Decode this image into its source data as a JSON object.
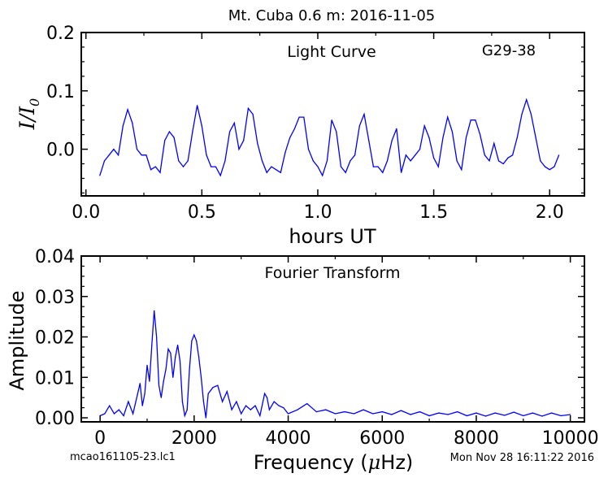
{
  "figure": {
    "title": "Mt. Cuba 0.6 m:  2016-11-05",
    "footer_left": "mcao161105-23.lc1",
    "footer_right": "Mon Nov 28 16:11:22 2016"
  },
  "colors": {
    "line": "#0000ff",
    "axes": "#000000",
    "background": "#ffffff"
  },
  "chart_data": [
    {
      "type": "line",
      "title": "Light Curve",
      "annotation": "G29-38",
      "xlabel": "hours UT",
      "ylabel_main": "I/I",
      "ylabel_sub": "0",
      "xlim": [
        -0.02,
        2.15
      ],
      "ylim": [
        -0.08,
        0.2
      ],
      "xticks": [
        0.0,
        0.5,
        1.0,
        1.5,
        2.0
      ],
      "xtick_labels": [
        "0.0",
        "0.5",
        "1.0",
        "1.5",
        "2.0"
      ],
      "yticks": [
        0.0,
        0.1,
        0.2
      ],
      "ytick_labels": [
        "0.0",
        "0.1",
        "0.2"
      ],
      "grid": false,
      "series": [
        {
          "x": [
            0.06,
            0.08,
            0.1,
            0.12,
            0.14,
            0.16,
            0.18,
            0.2,
            0.22,
            0.24,
            0.26,
            0.28,
            0.3,
            0.32,
            0.34,
            0.36,
            0.38,
            0.4,
            0.42,
            0.44,
            0.46,
            0.48,
            0.5,
            0.52,
            0.54,
            0.56,
            0.58,
            0.6,
            0.62,
            0.64,
            0.66,
            0.68,
            0.7,
            0.72,
            0.74,
            0.76,
            0.78,
            0.8,
            0.82,
            0.84,
            0.86,
            0.88,
            0.9,
            0.92,
            0.94,
            0.96,
            0.98,
            1.0,
            1.02,
            1.04,
            1.06,
            1.08,
            1.1,
            1.12,
            1.14,
            1.16,
            1.18,
            1.2,
            1.22,
            1.24,
            1.26,
            1.28,
            1.3,
            1.32,
            1.34,
            1.36,
            1.38,
            1.4,
            1.42,
            1.44,
            1.46,
            1.48,
            1.5,
            1.52,
            1.54,
            1.56,
            1.58,
            1.6,
            1.62,
            1.64,
            1.66,
            1.68,
            1.7,
            1.72,
            1.74,
            1.76,
            1.78,
            1.8,
            1.82,
            1.84,
            1.86,
            1.88,
            1.9,
            1.92,
            1.94,
            1.96,
            1.98,
            2.0,
            2.02,
            2.04
          ],
          "y": [
            -0.045,
            -0.02,
            -0.01,
            0.0,
            -0.01,
            0.04,
            0.068,
            0.045,
            0.0,
            -0.01,
            -0.01,
            -0.035,
            -0.03,
            -0.04,
            0.015,
            0.03,
            0.02,
            -0.02,
            -0.03,
            -0.02,
            0.03,
            0.075,
            0.04,
            -0.01,
            -0.03,
            -0.03,
            -0.045,
            -0.02,
            0.03,
            0.045,
            0.0,
            0.015,
            0.07,
            0.06,
            0.01,
            -0.02,
            -0.04,
            -0.03,
            -0.035,
            -0.04,
            -0.005,
            0.02,
            0.035,
            0.055,
            0.055,
            0.0,
            -0.02,
            -0.03,
            -0.045,
            -0.02,
            0.05,
            0.03,
            -0.03,
            -0.04,
            -0.02,
            -0.01,
            0.04,
            0.06,
            0.015,
            -0.03,
            -0.03,
            -0.04,
            -0.02,
            0.015,
            0.035,
            -0.04,
            -0.01,
            -0.02,
            -0.01,
            0.0,
            0.04,
            0.02,
            -0.015,
            -0.03,
            0.02,
            0.055,
            0.03,
            -0.02,
            -0.035,
            0.02,
            0.05,
            0.05,
            0.025,
            -0.01,
            -0.02,
            0.01,
            -0.02,
            -0.025,
            -0.015,
            -0.01,
            0.02,
            0.06,
            0.085,
            0.06,
            0.02,
            -0.02,
            -0.03,
            -0.035,
            -0.03,
            -0.01
          ]
        }
      ]
    },
    {
      "type": "line",
      "title": "Fourier Transform",
      "xlabel_main": "Frequency (",
      "xlabel_mu": "μ",
      "xlabel_unit": "Hz)",
      "ylabel": "Amplitude",
      "xlim": [
        -400,
        10300
      ],
      "ylim": [
        -0.001,
        0.04
      ],
      "xticks": [
        0,
        2000,
        4000,
        6000,
        8000,
        10000
      ],
      "xtick_labels": [
        "0",
        "2000",
        "4000",
        "6000",
        "8000",
        "10000"
      ],
      "yticks": [
        0.0,
        0.01,
        0.02,
        0.03,
        0.04
      ],
      "ytick_labels": [
        "0.00",
        "0.01",
        "0.02",
        "0.03",
        "0.04"
      ],
      "grid": false,
      "series": [
        {
          "x": [
            0,
            100,
            200,
            300,
            400,
            500,
            600,
            700,
            800,
            850,
            900,
            950,
            1000,
            1050,
            1100,
            1150,
            1200,
            1250,
            1300,
            1350,
            1400,
            1450,
            1500,
            1550,
            1600,
            1650,
            1700,
            1750,
            1800,
            1850,
            1900,
            1950,
            2000,
            2050,
            2100,
            2150,
            2200,
            2250,
            2300,
            2400,
            2500,
            2600,
            2700,
            2800,
            2900,
            3000,
            3100,
            3200,
            3300,
            3400,
            3500,
            3550,
            3600,
            3700,
            3800,
            3900,
            4000,
            4200,
            4400,
            4600,
            4800,
            5000,
            5200,
            5400,
            5600,
            5800,
            6000,
            6200,
            6400,
            6600,
            6800,
            7000,
            7200,
            7400,
            7600,
            7800,
            8000,
            8200,
            8400,
            8600,
            8800,
            9000,
            9200,
            9400,
            9600,
            9800,
            10000
          ],
          "y": [
            0.0005,
            0.001,
            0.003,
            0.001,
            0.002,
            0.0005,
            0.004,
            0.001,
            0.006,
            0.0085,
            0.003,
            0.006,
            0.013,
            0.009,
            0.018,
            0.0265,
            0.02,
            0.008,
            0.005,
            0.009,
            0.012,
            0.017,
            0.016,
            0.01,
            0.015,
            0.018,
            0.014,
            0.004,
            0.0005,
            0.002,
            0.012,
            0.019,
            0.0205,
            0.019,
            0.015,
            0.01,
            0.004,
            0.0,
            0.006,
            0.0075,
            0.008,
            0.004,
            0.0065,
            0.002,
            0.004,
            0.001,
            0.003,
            0.002,
            0.003,
            0.0005,
            0.006,
            0.005,
            0.002,
            0.004,
            0.003,
            0.0025,
            0.001,
            0.002,
            0.0035,
            0.0015,
            0.002,
            0.001,
            0.0015,
            0.001,
            0.002,
            0.001,
            0.0015,
            0.0008,
            0.0018,
            0.0008,
            0.0015,
            0.0005,
            0.0012,
            0.0008,
            0.0015,
            0.0005,
            0.0012,
            0.0004,
            0.0012,
            0.0006,
            0.0014,
            0.0005,
            0.0012,
            0.0004,
            0.0012,
            0.0005,
            0.0008
          ]
        }
      ]
    }
  ]
}
